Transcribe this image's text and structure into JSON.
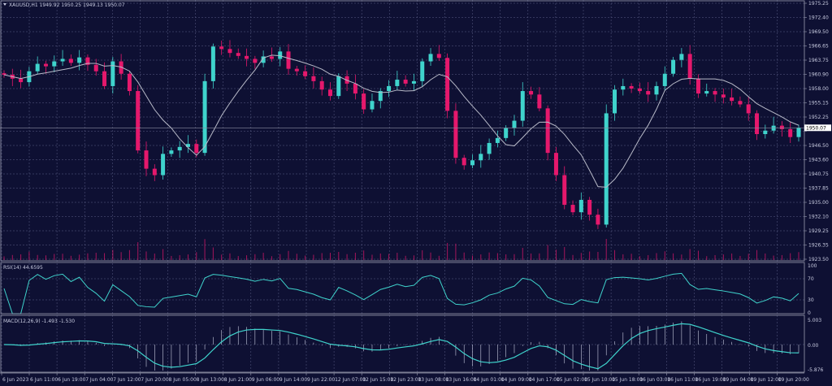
{
  "header": {
    "symbol_info": "XAUUSD,H1  1949.92 1950.25 1949.13 1950.07"
  },
  "rsi_panel": {
    "label": "RSI(14) 44.6595",
    "levels": [
      "100",
      "70",
      "30",
      "0"
    ]
  },
  "macd_panel": {
    "label": "MACD(12,26,9) -1.493 -1.530",
    "levels": [
      "5.003",
      "0.00",
      "-5.876"
    ]
  },
  "current_price": "1950.07",
  "colors": {
    "background": "#0e1033",
    "bull": "#3fd3cc",
    "bear": "#e5186c",
    "ma": "#b8bac8",
    "indicator": "#3fd3cc",
    "grid": "#5a5e86"
  },
  "chart_data": {
    "type": "candlestick",
    "title": "XAUUSD,H1",
    "ylim": [
      1923.5,
      1975.25
    ],
    "price_ticks": [
      "1975.25",
      "1972.40",
      "1969.50",
      "1966.65",
      "1963.75",
      "1960.90",
      "1958.00",
      "1955.15",
      "1952.25",
      "1949.40",
      "1946.50",
      "1943.60",
      "1940.75",
      "1937.85",
      "1935.00",
      "1932.10",
      "1929.25",
      "1926.35",
      "1923.50"
    ],
    "time_ticks": [
      "6 Jun 2023",
      "6 Jun 11:00",
      "6 Jun 19:00",
      "7 Jun 04:00",
      "7 Jun 12:00",
      "7 Jun 20:00",
      "8 Jun 05:00",
      "8 Jun 13:00",
      "8 Jun 21:00",
      "9 Jun 06:00",
      "9 Jun 14:00",
      "9 Jun 22:00",
      "12 Jun 07:00",
      "12 Jun 15:00",
      "12 Jun 23:00",
      "13 Jun 08:00",
      "13 Jun 16:00",
      "14 Jun 01:00",
      "14 Jun 09:00",
      "14 Jun 17:00",
      "15 Jun 02:00",
      "15 Jun 10:00",
      "15 Jun 18:00",
      "16 Jun 03:00",
      "16 Jun 11:00",
      "16 Jun 19:00",
      "19 Jun 04:00",
      "19 Jun 12:00",
      "19 Jun 20:00"
    ],
    "closes": [
      1960.8,
      1960.0,
      1959.3,
      1961.5,
      1963.0,
      1962.5,
      1963.5,
      1964.0,
      1963.2,
      1964.3,
      1962.8,
      1961.5,
      1958.5,
      1963.5,
      1961.0,
      1957.5,
      1945.5,
      1941.8,
      1940.5,
      1944.8,
      1945.5,
      1946.2,
      1946.8,
      1945.0,
      1959.5,
      1966.5,
      1966.0,
      1965.2,
      1964.6,
      1964.0,
      1963.2,
      1964.5,
      1964.0,
      1965.5,
      1962.0,
      1961.5,
      1960.5,
      1959.5,
      1957.8,
      1956.5,
      1960.5,
      1959.0,
      1957.0,
      1953.8,
      1955.5,
      1957.5,
      1958.5,
      1959.8,
      1959.0,
      1959.5,
      1963.5,
      1965.0,
      1964.2,
      1953.5,
      1944.0,
      1942.5,
      1943.5,
      1944.8,
      1947.0,
      1948.0,
      1950.0,
      1951.5,
      1957.5,
      1956.8,
      1954.0,
      1945.0,
      1940.5,
      1934.5,
      1933.0,
      1935.5,
      1932.5,
      1930.5,
      1953.0,
      1957.8,
      1958.5,
      1958.0,
      1957.5,
      1956.8,
      1958.5,
      1961.0,
      1963.8,
      1965.0,
      1960.0,
      1957.0,
      1957.5,
      1956.8,
      1956.2,
      1955.5,
      1954.8,
      1953.0,
      1948.8,
      1949.5,
      1950.5,
      1949.8,
      1948.2,
      1950.07
    ],
    "grid": true
  }
}
